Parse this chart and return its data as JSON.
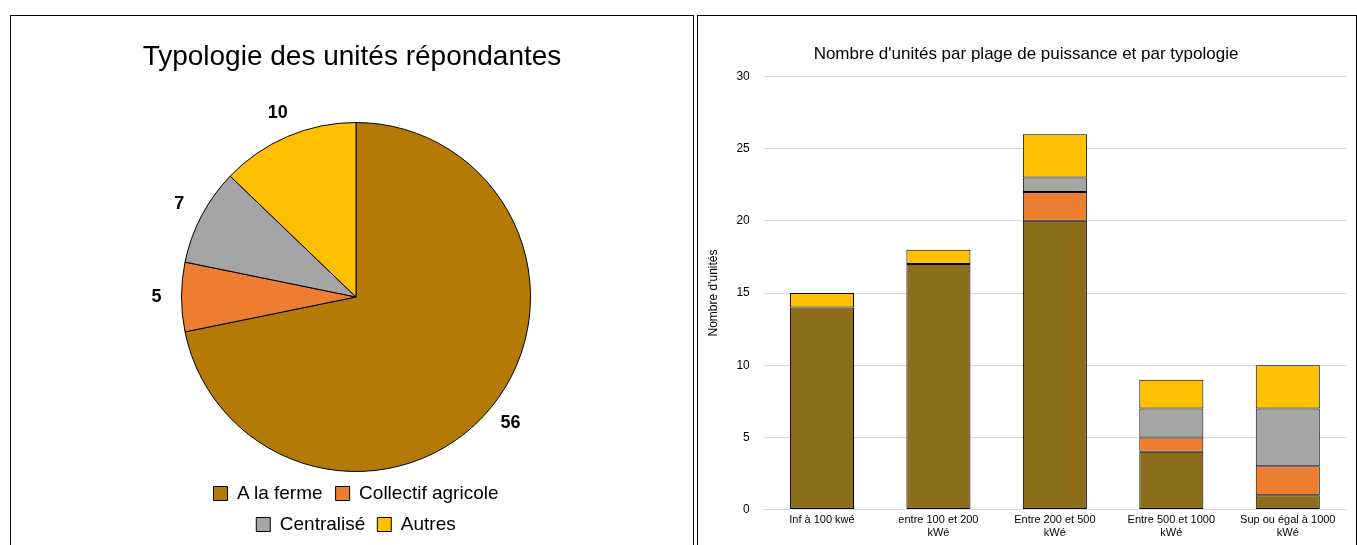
{
  "chart_data": [
    {
      "type": "pie",
      "title": "Typologie des unités répondantes",
      "categories": [
        "A la ferme",
        "Collectif agricole",
        "Centralisé",
        "Autres"
      ],
      "values": [
        56,
        5,
        7,
        10
      ],
      "colors": [
        "#b47a05",
        "#ed7d31",
        "#a5a5a5",
        "#ffc000"
      ],
      "data_labels": true,
      "legend": "bottom"
    },
    {
      "type": "bar",
      "title": "Nombre d'unités par plage de puissance et par typologie",
      "ylabel": "Nombre d'unités",
      "categories": [
        "Inf à 100 kwé",
        "entre 100 et 200 kWé",
        "Entre 200 et 500 kWé",
        "Entre 500 et 1000 kWé",
        "Sup ou égal à 1000 kWé"
      ],
      "stacked": true,
      "series": [
        {
          "color": "#8c6d1c",
          "values": [
            14,
            17,
            20,
            4,
            1
          ]
        },
        {
          "color": "#ed7d31",
          "values": [
            0,
            0,
            2,
            1,
            2
          ]
        },
        {
          "color": "#a5a5a5",
          "values": [
            0,
            0,
            1,
            2,
            4
          ]
        },
        {
          "color": "#ffc000",
          "values": [
            1,
            1,
            3,
            2,
            3
          ]
        }
      ],
      "ylim": [
        0,
        30
      ],
      "yticks": [
        0,
        5,
        10,
        15,
        20,
        25,
        30
      ],
      "grid": "y"
    }
  ]
}
